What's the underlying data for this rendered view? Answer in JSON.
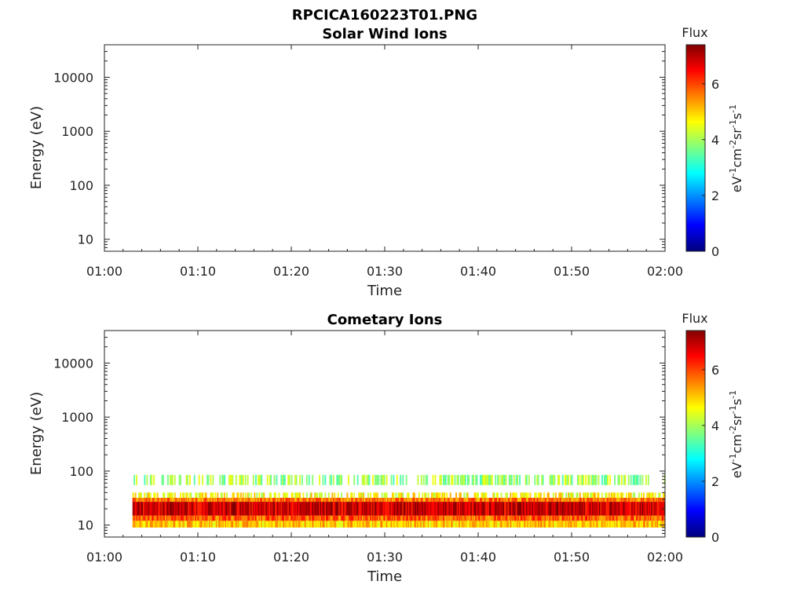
{
  "figure_title": "RPCICA160223T01.PNG",
  "colors": {
    "colormap": [
      "#00007f",
      "#0000ff",
      "#007fff",
      "#00ffff",
      "#7fff7f",
      "#ffff00",
      "#ff7f00",
      "#ff0000",
      "#7f0000"
    ],
    "axis": "#222222",
    "background": "#ffffff"
  },
  "chart_data": [
    {
      "type": "heatmap",
      "title": "Solar Wind Ions",
      "xlabel": "Time",
      "ylabel": "Energy (eV)",
      "x_ticks": [
        "01:00",
        "01:10",
        "01:20",
        "01:30",
        "01:40",
        "01:50",
        "02:00"
      ],
      "xlim_minutes": [
        0,
        60
      ],
      "y_scale": "log",
      "y_ticks": [
        10,
        100,
        1000,
        10000
      ],
      "y_tick_labels": [
        "10",
        "100",
        "1000",
        "10000"
      ],
      "ylim": [
        6,
        40000
      ],
      "colorbar": {
        "title": "Flux",
        "label": "eV-1cm-2sr-1s-1",
        "label_parts": [
          [
            "eV",
            ""
          ],
          [
            "-1",
            "sup"
          ],
          [
            "cm",
            ""
          ],
          [
            "-2",
            "sup"
          ],
          [
            "sr",
            ""
          ],
          [
            "-1",
            "sup"
          ],
          [
            "s",
            ""
          ],
          [
            "-1",
            "sup"
          ]
        ],
        "range": [
          0,
          7.4
        ],
        "ticks": [
          "0",
          "2",
          "4",
          "6"
        ]
      },
      "bands": []
    },
    {
      "type": "heatmap",
      "title": "Cometary Ions",
      "xlabel": "Time",
      "ylabel": "Energy (eV)",
      "x_ticks": [
        "01:00",
        "01:10",
        "01:20",
        "01:30",
        "01:40",
        "01:50",
        "02:00"
      ],
      "xlim_minutes": [
        0,
        60
      ],
      "y_scale": "log",
      "y_ticks": [
        10,
        100,
        1000,
        10000
      ],
      "y_tick_labels": [
        "10",
        "100",
        "1000",
        "10000"
      ],
      "ylim": [
        6,
        40000
      ],
      "colorbar": {
        "title": "Flux",
        "label": "eV-1cm-2sr-1s-1",
        "label_parts": [
          [
            "eV",
            ""
          ],
          [
            "-1",
            "sup"
          ],
          [
            "cm",
            ""
          ],
          [
            "-2",
            "sup"
          ],
          [
            "sr",
            ""
          ],
          [
            "-1",
            "sup"
          ],
          [
            "s",
            ""
          ],
          [
            "-1",
            "sup"
          ]
        ],
        "range": [
          0,
          7.4
        ],
        "ticks": [
          "0",
          "2",
          "4",
          "6"
        ]
      },
      "data_time_range_minutes": [
        3,
        60
      ],
      "bands": [
        {
          "energy_range": [
            9,
            12
          ],
          "flux": 5.0,
          "sparse": false
        },
        {
          "energy_range": [
            12,
            15
          ],
          "flux": 5.8,
          "sparse": false
        },
        {
          "energy_range": [
            15,
            27
          ],
          "flux": 6.8,
          "sparse": false
        },
        {
          "energy_range": [
            27,
            32
          ],
          "flux": 5.6,
          "sparse": false
        },
        {
          "energy_range": [
            32,
            40
          ],
          "flux": 4.6,
          "sparse": true
        },
        {
          "energy_range": [
            55,
            85
          ],
          "flux": 3.9,
          "sparse": true
        }
      ]
    }
  ]
}
